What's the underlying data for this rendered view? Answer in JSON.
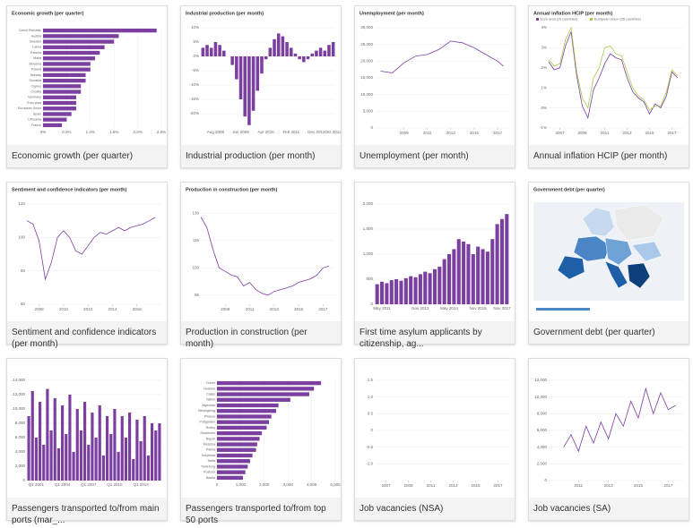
{
  "cards": [
    {
      "caption": "Economic growth (per quarter)",
      "chart": {
        "type": "hbar",
        "title": "Economic growth (per quarter)",
        "color": "#7b3fa0",
        "categories": [
          "Czech Republic",
          "Austria",
          "Sweden",
          "Latvia",
          "Estonia",
          "Malta",
          "Slovenia",
          "Poland",
          "Norway",
          "Slovakia",
          "Cyprus",
          "Croatia",
          "Germany",
          "Euro area",
          "European Union",
          "Spain",
          "Lithuania",
          "France"
        ],
        "values": [
          2.4,
          1.6,
          1.5,
          1.3,
          1.2,
          1.1,
          1.0,
          1.0,
          0.9,
          0.9,
          0.8,
          0.8,
          0.7,
          0.7,
          0.7,
          0.6,
          0.5,
          0.4
        ],
        "xlim": [
          0,
          2.5
        ],
        "xticks": [
          {
            "value": 0,
            "label": "0%"
          },
          {
            "value": 0.5,
            "label": "0.5%"
          },
          {
            "value": 1,
            "label": "1.0%"
          },
          {
            "value": 1.5,
            "label": "1.5%"
          },
          {
            "value": 2,
            "label": "2.0%"
          },
          {
            "value": 2.5,
            "label": "2.5%"
          }
        ]
      }
    },
    {
      "caption": "Industrial production (per month)",
      "chart": {
        "type": "bar",
        "title": "Industrial production (per month)",
        "color": "#7b3fa0",
        "categories": [
          null,
          null,
          null,
          "Aug 2008",
          null,
          null,
          null,
          null,
          null,
          "Jun 2009",
          null,
          null,
          null,
          null,
          null,
          "Apr 2010",
          null,
          null,
          null,
          null,
          null,
          "Feb 2011",
          null,
          null,
          null,
          null,
          null,
          "Dec 2012",
          null,
          null,
          null,
          "Oct 2013"
        ],
        "values": [
          3,
          4,
          3,
          5,
          4,
          2,
          0,
          -3,
          -8,
          -15,
          -21,
          -24,
          -19,
          -12,
          -6,
          -1,
          3,
          6,
          8,
          7,
          5,
          3,
          1,
          -1,
          -2,
          -1,
          1,
          2,
          3,
          2,
          4,
          5
        ],
        "ylim": [
          -25,
          10
        ],
        "yticks": [
          {
            "value": -20,
            "label": "-20%"
          },
          {
            "value": -15,
            "label": "-15%"
          },
          {
            "value": -10,
            "label": "-10%"
          },
          {
            "value": -5,
            "label": "-5%"
          },
          {
            "value": 0,
            "label": "0%"
          },
          {
            "value": 5,
            "label": "5%"
          },
          {
            "value": 10,
            "label": "10%"
          }
        ]
      }
    },
    {
      "caption": "Unemployment (per month)",
      "chart": {
        "type": "line",
        "title": "Unemployment (per month)",
        "x": [
          2007,
          2008,
          2009,
          2010,
          2011,
          2012,
          2013,
          2014,
          2015,
          2016,
          2017,
          2017.5
        ],
        "xlim": [
          2006.5,
          2018
        ],
        "xticks": [
          2009,
          2011,
          2013,
          2015,
          2017
        ],
        "series": [
          {
            "color": "#7b3fa0",
            "values": [
              17000,
              16500,
              19500,
              21500,
              22000,
              23500,
              26000,
              25500,
              24000,
              22000,
              20000,
              18500
            ]
          }
        ],
        "ylim": [
          0,
          30000
        ],
        "yticks": [
          0,
          {
            "value": 5000,
            "label": "5,000"
          },
          {
            "value": 10000,
            "label": "10,000"
          },
          {
            "value": 15000,
            "label": "15,000"
          },
          {
            "value": 20000,
            "label": "20,000"
          },
          {
            "value": 25000,
            "label": "25,000"
          },
          {
            "value": 30000,
            "label": "30,000"
          }
        ]
      }
    },
    {
      "caption": "Annual inflation HCIP (per month)",
      "chart": {
        "type": "line",
        "title": "Annual inflation HCIP (per month)",
        "x": [
          2006,
          2006.5,
          2007,
          2007.5,
          2008,
          2008.5,
          2009,
          2009.5,
          2010,
          2010.5,
          2011,
          2011.5,
          2012,
          2012.5,
          2013,
          2013.5,
          2014,
          2014.5,
          2015,
          2015.5,
          2016,
          2016.5,
          2017,
          2017.5
        ],
        "xlim": [
          2006,
          2018
        ],
        "xticks": [
          2007,
          2009,
          2011,
          2013,
          2015,
          2017
        ],
        "series": [
          {
            "name": "Euro area (19 countries)",
            "color": "#7b3fa0",
            "values": [
              2.3,
              1.9,
              2.0,
              3.1,
              3.8,
              1.6,
              0.1,
              -0.5,
              0.9,
              1.5,
              2.2,
              2.7,
              2.5,
              2.4,
              1.5,
              0.8,
              0.5,
              0.3,
              -0.3,
              0.2,
              0.0,
              0.6,
              1.8,
              1.5
            ]
          },
          {
            "name": "European Union (28 countries)",
            "color": "#a8c84a",
            "values": [
              2.4,
              2.1,
              2.2,
              3.4,
              4.0,
              1.8,
              0.5,
              0.0,
              1.5,
              2.0,
              3.0,
              3.1,
              2.7,
              2.6,
              1.8,
              1.0,
              0.6,
              0.4,
              -0.1,
              0.1,
              0.1,
              0.8,
              1.9,
              1.6
            ]
          }
        ],
        "ylim": [
          -1,
          4
        ],
        "yticks": [
          {
            "value": -1,
            "label": "-1%"
          },
          {
            "value": 0,
            "label": "0%"
          },
          {
            "value": 1,
            "label": "1%"
          },
          {
            "value": 2,
            "label": "2%"
          },
          {
            "value": 3,
            "label": "3%"
          },
          {
            "value": 4,
            "label": "4%"
          }
        ]
      }
    },
    {
      "caption": "Sentiment and confidence indicators (per month)",
      "chart": {
        "type": "line",
        "title": "Sentiment and confidence indicators (per month)",
        "x": [
          2007,
          2007.5,
          2008,
          2008.5,
          2009,
          2009.5,
          2010,
          2010.5,
          2011,
          2011.5,
          2012,
          2012.5,
          2013,
          2013.5,
          2014,
          2014.5,
          2015,
          2015.5,
          2016,
          2016.5,
          2017,
          2017.5
        ],
        "xlim": [
          2007,
          2018
        ],
        "xticks": [
          2008,
          2010,
          2012,
          2014,
          2016
        ],
        "series": [
          {
            "color": "#7b3fa0",
            "values": [
              110,
              108,
              98,
              75,
              85,
              100,
              104,
              100,
              92,
              90,
              95,
              100,
              103,
              102,
              104,
              106,
              104,
              106,
              107,
              108,
              110,
              112
            ]
          }
        ],
        "ylim": [
          60,
          120
        ],
        "yticks": [
          60,
          80,
          100,
          120
        ]
      }
    },
    {
      "caption": "Production in construction (per month)",
      "chart": {
        "type": "line",
        "title": "Production in construction (per month)",
        "x": [
          2007,
          2007.5,
          2008,
          2008.5,
          2009,
          2009.5,
          2010,
          2010.5,
          2011,
          2011.5,
          2012,
          2012.5,
          2013,
          2013.5,
          2014,
          2014.5,
          2015,
          2015.5,
          2016,
          2016.5,
          2017,
          2017.5
        ],
        "xlim": [
          2007,
          2018
        ],
        "xticks": [
          2009,
          2011,
          2013,
          2015,
          2017
        ],
        "series": [
          {
            "color": "#7b3fa0",
            "values": [
              128,
              122,
              110,
              100,
              98,
              96,
              95,
              90,
              92,
              88,
              86,
              85,
              87,
              88,
              89,
              90,
              92,
              93,
              94,
              96,
              100,
              101
            ]
          }
        ],
        "ylim": [
          80,
          135
        ],
        "yticks": [
          85,
          100,
          115,
          130
        ]
      }
    },
    {
      "caption": "First time asylum applicants by citizenship, ag...",
      "chart": {
        "type": "bar",
        "color": "#7b3fa0",
        "categories": [
          null,
          "May 2011",
          null,
          null,
          null,
          null,
          null,
          null,
          null,
          "Nov 2012",
          null,
          null,
          null,
          null,
          null,
          "May 2014",
          null,
          null,
          null,
          null,
          null,
          "Nov 2015",
          null,
          null,
          null,
          null,
          "Nov 2017",
          null
        ],
        "values": [
          400,
          450,
          420,
          480,
          500,
          470,
          520,
          560,
          540,
          600,
          650,
          620,
          700,
          750,
          900,
          1000,
          1100,
          1300,
          1250,
          1200,
          1000,
          1150,
          1100,
          1050,
          1300,
          1600,
          1700,
          1800
        ],
        "ylim": [
          0,
          2000
        ],
        "yticks": [
          0,
          500,
          {
            "value": 1000,
            "label": "1,000"
          },
          {
            "value": 1500,
            "label": "1,500"
          },
          {
            "value": 2000,
            "label": "2,000"
          }
        ]
      }
    },
    {
      "caption": "Government debt (per quarter)",
      "chart": {
        "type": "map",
        "title": "Government debt (per quarter)"
      }
    },
    {
      "caption": "Passengers transported to/from main ports (mar_...",
      "chart": {
        "type": "bar",
        "color": "#7b3fa0",
        "categories": [
          null,
          null,
          "Q1 2001",
          null,
          null,
          null,
          null,
          null,
          null,
          "Q1 2004",
          null,
          null,
          null,
          null,
          null,
          null,
          "Q1 2007",
          null,
          null,
          null,
          null,
          null,
          null,
          "Q1 2010",
          null,
          null,
          null,
          null,
          null,
          null,
          "Q1 2013",
          null,
          null,
          null,
          null,
          null
        ],
        "values": [
          9000,
          12500,
          6000,
          11000,
          5000,
          12800,
          7000,
          11500,
          4500,
          10500,
          6500,
          12000,
          4000,
          10000,
          7000,
          11000,
          5000,
          9500,
          6000,
          10500,
          3500,
          9000,
          6500,
          10000,
          4000,
          9000,
          6000,
          9500,
          3000,
          8500,
          5500,
          9000,
          3500,
          8000,
          7000,
          8000
        ],
        "ylim": [
          0,
          14000
        ],
        "yticks": [
          0,
          {
            "value": 2000,
            "label": "2,000"
          },
          {
            "value": 4000,
            "label": "4,000"
          },
          {
            "value": 6000,
            "label": "6,000"
          },
          {
            "value": 8000,
            "label": "8,000"
          },
          {
            "value": 10000,
            "label": "10,000"
          },
          {
            "value": 12000,
            "label": "12,000"
          },
          {
            "value": 14000,
            "label": "14,000"
          }
        ]
      }
    },
    {
      "caption": "Passengers transported to/from top 50 ports",
      "chart": {
        "type": "hbar",
        "color": "#7b3fa0",
        "categories": [
          "Dover",
          "Helsinki",
          "Calais",
          "Tallinn",
          "Algeciras",
          "Helsingborg",
          "Piraeus",
          "Puttgarden",
          "Rodby",
          "Stockholm",
          "Napoli",
          "Messina",
          "Palma",
          "Holyhead",
          "Tarifa",
          "Trelleborg",
          "Rostock",
          "Bastia"
        ],
        "values": [
          4400,
          4100,
          3900,
          3100,
          2600,
          2500,
          2300,
          2200,
          2100,
          1900,
          1800,
          1700,
          1650,
          1500,
          1400,
          1300,
          1200,
          1100
        ],
        "xlim": [
          0,
          5000
        ],
        "xticks": [
          0,
          {
            "value": 1000,
            "label": "1,000"
          },
          {
            "value": 2000,
            "label": "2,000"
          },
          {
            "value": 3000,
            "label": "3,000"
          },
          {
            "value": 4000,
            "label": "4,000"
          },
          {
            "value": 5000,
            "label": "5,000"
          }
        ]
      }
    },
    {
      "caption": "Job vacancies (NSA)",
      "chart": {
        "type": "line",
        "x": [],
        "series": [],
        "xlim": [
          2006,
          2018
        ],
        "xticks": [
          2007,
          2009,
          2011,
          2013,
          2015,
          2017
        ],
        "ylim": [
          -1.5,
          1.5
        ],
        "yticks": [
          {
            "value": -1,
            "label": "-1.0"
          },
          {
            "value": -0.5,
            "label": "-0.5"
          },
          0,
          0.5,
          {
            "value": 1,
            "label": "1.0"
          },
          1.5
        ]
      }
    },
    {
      "caption": "Job vacancies (SA)",
      "chart": {
        "type": "line",
        "x": [
          2010,
          2010.5,
          2011,
          2011.5,
          2012,
          2012.5,
          2013,
          2013.5,
          2014,
          2014.5,
          2015,
          2015.5,
          2016,
          2016.5,
          2017,
          2017.5
        ],
        "xlim": [
          2009,
          2018
        ],
        "xticks": [
          2011,
          2013,
          2015,
          2017
        ],
        "series": [
          {
            "color": "#7b3fa0",
            "values": [
              4000,
              5500,
              3500,
              6500,
              4500,
              7000,
              5000,
              8000,
              6500,
              9500,
              7500,
              11000,
              8000,
              10500,
              8500,
              9000
            ]
          }
        ],
        "ylim": [
          0,
          12000
        ],
        "yticks": [
          0,
          {
            "value": 2000,
            "label": "2,000"
          },
          {
            "value": 4000,
            "label": "4,000"
          },
          {
            "value": 6000,
            "label": "6,000"
          },
          {
            "value": 8000,
            "label": "8,000"
          },
          {
            "value": 10000,
            "label": "10,000"
          },
          {
            "value": 12000,
            "label": "12,000"
          }
        ]
      }
    }
  ]
}
